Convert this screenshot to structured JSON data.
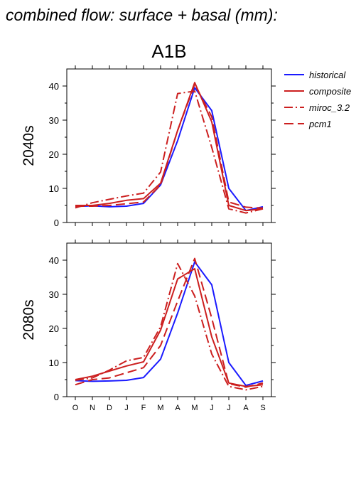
{
  "figure": {
    "title": "combined flow: surface + basal (mm):",
    "scenario": "A1B"
  },
  "legend": {
    "items": [
      {
        "label": "historical",
        "color": "#1a1aff",
        "dash": "solid"
      },
      {
        "label": "composite",
        "color": "#cc1f1f",
        "dash": "solid"
      },
      {
        "label": "miroc_3.2",
        "color": "#cc1f1f",
        "dash": "dash-dot"
      },
      {
        "label": "pcm1",
        "color": "#cc1f1f",
        "dash": "dashed"
      }
    ]
  },
  "chart_data": [
    {
      "type": "line",
      "panel": "2040s",
      "ylabel": "2040s",
      "categories": [
        "O",
        "N",
        "D",
        "J",
        "F",
        "M",
        "A",
        "M",
        "J",
        "J",
        "A",
        "S"
      ],
      "ylim": [
        0,
        45
      ],
      "yticks": [
        0,
        10,
        20,
        30,
        40
      ],
      "series": [
        {
          "name": "historical",
          "values": [
            4.7,
            4.9,
            4.6,
            4.8,
            5.6,
            11,
            24,
            39.5,
            32.8,
            10,
            3.5,
            4.6
          ]
        },
        {
          "name": "composite",
          "values": [
            5.0,
            5.0,
            5.6,
            6.5,
            7.0,
            11.5,
            27,
            41,
            29.5,
            5.0,
            3.5,
            4.0
          ]
        },
        {
          "name": "miroc_3.2",
          "values": [
            4.3,
            5.8,
            6.8,
            7.8,
            8.6,
            14.8,
            37.8,
            38.5,
            22,
            4.0,
            2.8,
            4.0
          ]
        },
        {
          "name": "pcm1",
          "values": [
            4.8,
            4.8,
            5.0,
            5.5,
            6.0,
            11,
            27,
            40.5,
            31,
            6.0,
            4.5,
            4.2
          ]
        }
      ]
    },
    {
      "type": "line",
      "panel": "2080s",
      "ylabel": "2080s",
      "categories": [
        "O",
        "N",
        "D",
        "J",
        "F",
        "M",
        "A",
        "M",
        "J",
        "J",
        "A",
        "S"
      ],
      "ylim": [
        0,
        45
      ],
      "yticks": [
        0,
        10,
        20,
        30,
        40
      ],
      "series": [
        {
          "name": "historical",
          "values": [
            4.7,
            4.5,
            4.6,
            4.8,
            5.6,
            11,
            24.5,
            39.5,
            32.8,
            10,
            3.3,
            4.6
          ]
        },
        {
          "name": "composite",
          "values": [
            5.0,
            6.0,
            7.5,
            9.0,
            10.2,
            19.5,
            34.5,
            37.5,
            17.5,
            4.0,
            3.0,
            3.5
          ]
        },
        {
          "name": "miroc_3.2",
          "values": [
            4.8,
            5.5,
            7.8,
            10.5,
            11.5,
            20.5,
            39,
            29.5,
            12.5,
            3.0,
            2.0,
            3.0
          ]
        },
        {
          "name": "pcm1",
          "values": [
            3.5,
            5.0,
            5.5,
            7.0,
            8.5,
            15,
            28,
            40.5,
            23,
            3.8,
            2.8,
            4.0
          ]
        }
      ]
    }
  ]
}
